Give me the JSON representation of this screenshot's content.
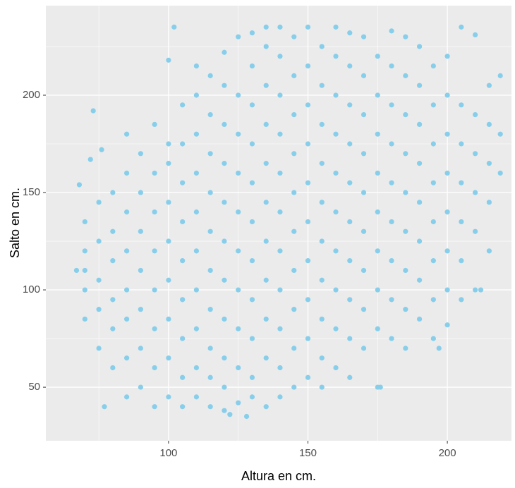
{
  "chart_data": {
    "type": "scatter",
    "x_label": "Altura en cm.",
    "y_label": "Salto en cm.",
    "color": "#87CEEB",
    "grid": true,
    "xlim": [
      56,
      223
    ],
    "ylim": [
      22.5,
      246
    ],
    "xticks": [
      100,
      150,
      200
    ],
    "yticks": [
      50,
      100,
      150,
      200
    ],
    "xminor": [
      75,
      125,
      175
    ],
    "yminor": [
      75,
      125,
      175,
      225
    ],
    "x": [
      70,
      70,
      70,
      70,
      70,
      75,
      75,
      75,
      75,
      75,
      80,
      80,
      80,
      80,
      80,
      80,
      85,
      85,
      85,
      85,
      85,
      85,
      85,
      85,
      90,
      90,
      90,
      90,
      90,
      90,
      90,
      95,
      95,
      95,
      95,
      95,
      95,
      95,
      95,
      100,
      100,
      100,
      100,
      100,
      100,
      100,
      100,
      100,
      105,
      105,
      105,
      105,
      105,
      105,
      105,
      105,
      105,
      110,
      110,
      110,
      110,
      110,
      110,
      110,
      110,
      110,
      110,
      115,
      115,
      115,
      115,
      115,
      115,
      115,
      115,
      115,
      115,
      120,
      120,
      120,
      120,
      120,
      120,
      120,
      120,
      120,
      120,
      120,
      125,
      125,
      125,
      125,
      125,
      125,
      125,
      125,
      125,
      125,
      130,
      130,
      130,
      130,
      130,
      130,
      130,
      130,
      130,
      130,
      130,
      135,
      135,
      135,
      135,
      135,
      135,
      135,
      135,
      135,
      135,
      135,
      140,
      140,
      140,
      140,
      140,
      140,
      140,
      140,
      140,
      140,
      140,
      145,
      145,
      145,
      145,
      145,
      145,
      145,
      145,
      145,
      145,
      150,
      150,
      150,
      150,
      150,
      150,
      150,
      150,
      150,
      150,
      155,
      155,
      155,
      155,
      155,
      155,
      155,
      155,
      155,
      155,
      160,
      160,
      160,
      160,
      160,
      160,
      160,
      160,
      160,
      160,
      165,
      165,
      165,
      165,
      165,
      165,
      165,
      165,
      165,
      165,
      170,
      170,
      170,
      170,
      170,
      170,
      170,
      170,
      170,
      175,
      175,
      175,
      175,
      175,
      175,
      175,
      175,
      175,
      180,
      180,
      180,
      180,
      180,
      180,
      180,
      180,
      180,
      185,
      185,
      185,
      185,
      185,
      185,
      185,
      185,
      185,
      190,
      190,
      190,
      190,
      190,
      190,
      190,
      190,
      195,
      195,
      195,
      195,
      195,
      195,
      195,
      195,
      200,
      200,
      200,
      200,
      200,
      200,
      200,
      200,
      205,
      205,
      205,
      205,
      205,
      205,
      205,
      210,
      210,
      210,
      210,
      210,
      210,
      215,
      215,
      215,
      215,
      215,
      219,
      219,
      219,
      73,
      68,
      72,
      76,
      102,
      122,
      128,
      176,
      197,
      212,
      67,
      77
    ],
    "values": [
      85,
      100,
      110,
      120,
      135,
      70,
      90,
      105,
      125,
      145,
      60,
      80,
      95,
      115,
      130,
      150,
      45,
      65,
      85,
      100,
      120,
      140,
      160,
      180,
      50,
      70,
      90,
      110,
      130,
      150,
      170,
      40,
      60,
      80,
      100,
      120,
      140,
      160,
      185,
      45,
      65,
      85,
      105,
      125,
      145,
      165,
      175,
      218,
      40,
      55,
      75,
      95,
      115,
      135,
      155,
      175,
      195,
      45,
      60,
      80,
      100,
      120,
      140,
      160,
      180,
      200,
      215,
      40,
      55,
      70,
      90,
      110,
      130,
      150,
      170,
      190,
      210,
      38,
      50,
      65,
      85,
      105,
      125,
      145,
      165,
      185,
      205,
      222,
      42,
      60,
      80,
      100,
      120,
      140,
      160,
      180,
      200,
      230,
      45,
      55,
      75,
      95,
      115,
      135,
      155,
      175,
      195,
      215,
      232,
      40,
      65,
      85,
      105,
      125,
      145,
      165,
      185,
      205,
      225,
      235,
      45,
      60,
      80,
      100,
      120,
      140,
      160,
      180,
      200,
      220,
      235,
      50,
      70,
      90,
      110,
      130,
      150,
      170,
      190,
      210,
      230,
      55,
      75,
      95,
      115,
      135,
      155,
      175,
      195,
      215,
      235,
      50,
      65,
      85,
      105,
      125,
      145,
      165,
      185,
      205,
      225,
      60,
      80,
      100,
      120,
      140,
      160,
      180,
      200,
      220,
      235,
      55,
      75,
      95,
      115,
      135,
      155,
      175,
      195,
      215,
      232,
      70,
      90,
      110,
      130,
      150,
      170,
      190,
      210,
      230,
      50,
      80,
      100,
      120,
      140,
      160,
      180,
      200,
      220,
      75,
      95,
      115,
      135,
      155,
      175,
      195,
      215,
      233,
      70,
      90,
      110,
      130,
      150,
      170,
      190,
      210,
      230,
      85,
      105,
      125,
      145,
      165,
      185,
      205,
      225,
      75,
      95,
      115,
      135,
      155,
      175,
      195,
      215,
      82,
      100,
      120,
      140,
      160,
      180,
      200,
      220,
      95,
      115,
      135,
      155,
      175,
      195,
      235,
      100,
      130,
      150,
      170,
      190,
      231,
      120,
      145,
      165,
      185,
      205,
      160,
      180,
      210,
      192,
      154,
      167,
      172,
      235,
      36,
      35,
      50,
      70,
      100,
      110,
      40
    ]
  }
}
